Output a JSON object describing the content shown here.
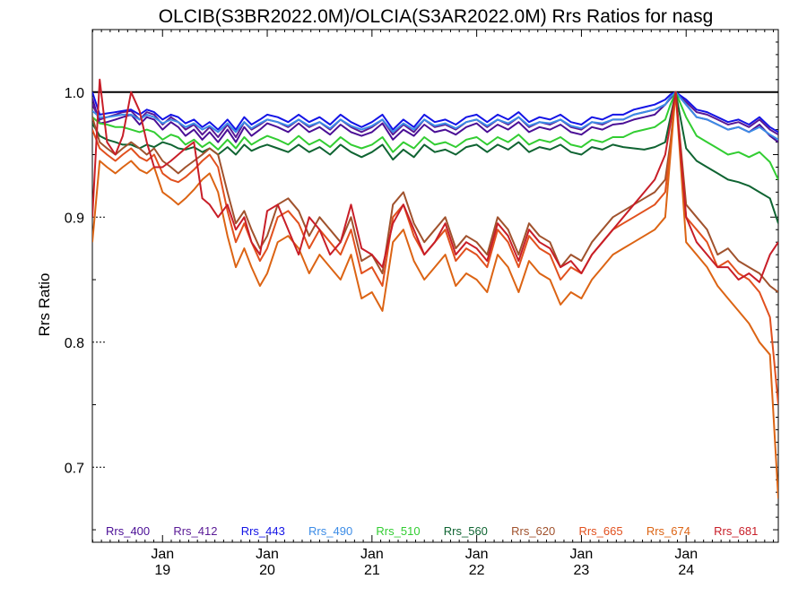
{
  "chart_data": {
    "type": "line",
    "title": "OLCIB(S3BR2022.0M)/OLCIA(S3AR2022.0M)  Rrs Ratios for nasg",
    "ylabel": "Rrs Ratio",
    "xlabel": "",
    "ylim": [
      0.64,
      1.05
    ],
    "y_ticks": [
      {
        "value": 0.7,
        "label": "0.7"
      },
      {
        "value": 0.8,
        "label": "0.8"
      },
      {
        "value": 0.9,
        "label": "0.9"
      },
      {
        "value": 1.0,
        "label": "1.0"
      }
    ],
    "x_range": [
      2018.33,
      2024.88
    ],
    "x_ticks": [
      {
        "value": 2019.0,
        "month": "Jan",
        "year": "19"
      },
      {
        "value": 2020.0,
        "month": "Jan",
        "year": "20"
      },
      {
        "value": 2021.0,
        "month": "Jan",
        "year": "21"
      },
      {
        "value": 2022.0,
        "month": "Jan",
        "year": "22"
      },
      {
        "value": 2023.0,
        "month": "Jan",
        "year": "23"
      },
      {
        "value": 2024.0,
        "month": "Jan",
        "year": "24"
      }
    ],
    "reference_line": 1.0,
    "grid": false,
    "legend_position": "bottom",
    "x": [
      2018.33,
      2018.4,
      2018.47,
      2018.55,
      2018.62,
      2018.7,
      2018.78,
      2018.85,
      2018.92,
      2019.0,
      2019.08,
      2019.15,
      2019.22,
      2019.3,
      2019.38,
      2019.45,
      2019.53,
      2019.62,
      2019.7,
      2019.78,
      2019.85,
      2019.93,
      2020.0,
      2020.1,
      2020.2,
      2020.3,
      2020.4,
      2020.5,
      2020.6,
      2020.7,
      2020.8,
      2020.9,
      2021.0,
      2021.1,
      2021.2,
      2021.3,
      2021.4,
      2021.5,
      2021.6,
      2021.7,
      2021.8,
      2021.9,
      2022.0,
      2022.1,
      2022.2,
      2022.3,
      2022.4,
      2022.5,
      2022.6,
      2022.7,
      2022.8,
      2022.9,
      2023.0,
      2023.1,
      2023.2,
      2023.3,
      2023.4,
      2023.5,
      2023.6,
      2023.7,
      2023.8,
      2023.85,
      2023.9,
      2024.0,
      2024.1,
      2024.2,
      2024.3,
      2024.4,
      2024.5,
      2024.6,
      2024.7,
      2024.8,
      2024.88
    ],
    "series": [
      {
        "name": "Rrs_400",
        "color": "#4b0f96",
        "values": [
          0.995,
          0.975,
          0.976,
          0.978,
          0.98,
          0.982,
          0.974,
          0.98,
          0.978,
          0.97,
          0.976,
          0.972,
          0.965,
          0.97,
          0.962,
          0.968,
          0.96,
          0.97,
          0.96,
          0.972,
          0.965,
          0.97,
          0.975,
          0.972,
          0.968,
          0.975,
          0.968,
          0.972,
          0.966,
          0.974,
          0.968,
          0.965,
          0.968,
          0.975,
          0.962,
          0.97,
          0.965,
          0.974,
          0.968,
          0.97,
          0.966,
          0.972,
          0.975,
          0.968,
          0.974,
          0.97,
          0.976,
          0.968,
          0.972,
          0.97,
          0.974,
          0.968,
          0.966,
          0.972,
          0.97,
          0.974,
          0.975,
          0.978,
          0.98,
          0.982,
          0.99,
          0.995,
          1.0,
          0.99,
          0.98,
          0.978,
          0.974,
          0.97,
          0.972,
          0.968,
          0.974,
          0.965,
          0.96
        ]
      },
      {
        "name": "Rrs_412",
        "color": "#5a1a96",
        "values": [
          0.99,
          0.978,
          0.98,
          0.982,
          0.984,
          0.985,
          0.978,
          0.984,
          0.982,
          0.974,
          0.98,
          0.976,
          0.97,
          0.974,
          0.966,
          0.972,
          0.964,
          0.974,
          0.964,
          0.976,
          0.97,
          0.974,
          0.978,
          0.976,
          0.972,
          0.978,
          0.972,
          0.976,
          0.97,
          0.978,
          0.972,
          0.968,
          0.972,
          0.978,
          0.966,
          0.974,
          0.968,
          0.978,
          0.972,
          0.974,
          0.97,
          0.976,
          0.978,
          0.972,
          0.978,
          0.974,
          0.98,
          0.972,
          0.976,
          0.974,
          0.978,
          0.972,
          0.97,
          0.976,
          0.974,
          0.978,
          0.978,
          0.982,
          0.984,
          0.986,
          0.99,
          0.996,
          1.0,
          0.992,
          0.984,
          0.982,
          0.978,
          0.974,
          0.976,
          0.972,
          0.978,
          0.97,
          0.966
        ]
      },
      {
        "name": "Rrs_443",
        "color": "#1414e6",
        "values": [
          1.0,
          0.982,
          0.983,
          0.984,
          0.985,
          0.986,
          0.982,
          0.986,
          0.984,
          0.978,
          0.982,
          0.98,
          0.975,
          0.978,
          0.972,
          0.976,
          0.97,
          0.978,
          0.97,
          0.98,
          0.974,
          0.978,
          0.982,
          0.98,
          0.976,
          0.982,
          0.976,
          0.98,
          0.974,
          0.982,
          0.976,
          0.972,
          0.976,
          0.982,
          0.97,
          0.978,
          0.972,
          0.982,
          0.976,
          0.978,
          0.974,
          0.98,
          0.982,
          0.976,
          0.982,
          0.978,
          0.984,
          0.976,
          0.98,
          0.978,
          0.982,
          0.976,
          0.974,
          0.98,
          0.978,
          0.982,
          0.982,
          0.986,
          0.988,
          0.99,
          0.994,
          0.998,
          1.0,
          0.994,
          0.986,
          0.984,
          0.98,
          0.976,
          0.978,
          0.974,
          0.98,
          0.972,
          0.968
        ]
      },
      {
        "name": "Rrs_490",
        "color": "#3c8ce6",
        "values": [
          0.985,
          0.98,
          0.98,
          0.981,
          0.982,
          0.982,
          0.978,
          0.982,
          0.98,
          0.975,
          0.978,
          0.976,
          0.972,
          0.975,
          0.97,
          0.973,
          0.968,
          0.975,
          0.968,
          0.976,
          0.971,
          0.975,
          0.978,
          0.976,
          0.973,
          0.978,
          0.973,
          0.976,
          0.971,
          0.978,
          0.973,
          0.97,
          0.973,
          0.978,
          0.968,
          0.975,
          0.97,
          0.978,
          0.973,
          0.975,
          0.971,
          0.976,
          0.978,
          0.973,
          0.978,
          0.975,
          0.98,
          0.973,
          0.976,
          0.975,
          0.978,
          0.973,
          0.971,
          0.976,
          0.975,
          0.978,
          0.978,
          0.982,
          0.984,
          0.986,
          0.99,
          0.996,
          1.0,
          0.99,
          0.98,
          0.978,
          0.974,
          0.97,
          0.972,
          0.968,
          0.972,
          0.966,
          0.962
        ]
      },
      {
        "name": "Rrs_510",
        "color": "#32cd32",
        "values": [
          0.98,
          0.975,
          0.974,
          0.972,
          0.972,
          0.97,
          0.968,
          0.97,
          0.968,
          0.962,
          0.966,
          0.964,
          0.958,
          0.962,
          0.956,
          0.96,
          0.954,
          0.962,
          0.955,
          0.964,
          0.958,
          0.962,
          0.965,
          0.962,
          0.958,
          0.965,
          0.958,
          0.962,
          0.956,
          0.964,
          0.958,
          0.955,
          0.958,
          0.964,
          0.952,
          0.96,
          0.955,
          0.964,
          0.958,
          0.96,
          0.956,
          0.962,
          0.964,
          0.958,
          0.964,
          0.96,
          0.966,
          0.958,
          0.962,
          0.96,
          0.964,
          0.958,
          0.956,
          0.962,
          0.96,
          0.964,
          0.964,
          0.968,
          0.97,
          0.972,
          0.978,
          0.99,
          1.0,
          0.98,
          0.965,
          0.96,
          0.955,
          0.95,
          0.952,
          0.948,
          0.952,
          0.944,
          0.93
        ]
      },
      {
        "name": "Rrs_560",
        "color": "#0f6432",
        "values": [
          0.975,
          0.965,
          0.962,
          0.96,
          0.958,
          0.958,
          0.955,
          0.958,
          0.956,
          0.96,
          0.958,
          0.955,
          0.954,
          0.956,
          0.952,
          0.955,
          0.95,
          0.956,
          0.95,
          0.958,
          0.953,
          0.956,
          0.958,
          0.955,
          0.952,
          0.958,
          0.952,
          0.956,
          0.95,
          0.958,
          0.952,
          0.948,
          0.952,
          0.958,
          0.946,
          0.954,
          0.948,
          0.958,
          0.952,
          0.954,
          0.95,
          0.956,
          0.958,
          0.952,
          0.958,
          0.954,
          0.96,
          0.952,
          0.956,
          0.954,
          0.958,
          0.952,
          0.95,
          0.956,
          0.954,
          0.958,
          0.956,
          0.955,
          0.954,
          0.956,
          0.96,
          0.98,
          1.0,
          0.955,
          0.945,
          0.94,
          0.935,
          0.93,
          0.928,
          0.925,
          0.92,
          0.915,
          0.895
        ]
      },
      {
        "name": "Rrs_620",
        "color": "#a0522d",
        "values": [
          0.98,
          0.96,
          0.955,
          0.95,
          0.955,
          0.96,
          0.955,
          0.95,
          0.955,
          0.945,
          0.94,
          0.935,
          0.94,
          0.945,
          0.95,
          0.955,
          0.95,
          0.92,
          0.895,
          0.905,
          0.89,
          0.875,
          0.885,
          0.91,
          0.915,
          0.905,
          0.885,
          0.9,
          0.89,
          0.88,
          0.9,
          0.865,
          0.87,
          0.855,
          0.91,
          0.92,
          0.895,
          0.88,
          0.89,
          0.9,
          0.875,
          0.885,
          0.88,
          0.87,
          0.9,
          0.89,
          0.87,
          0.895,
          0.885,
          0.88,
          0.86,
          0.87,
          0.865,
          0.88,
          0.89,
          0.9,
          0.905,
          0.91,
          0.915,
          0.92,
          0.93,
          0.96,
          1.0,
          0.91,
          0.9,
          0.89,
          0.87,
          0.875,
          0.865,
          0.86,
          0.855,
          0.845,
          0.84
        ]
      },
      {
        "name": "Rrs_665",
        "color": "#e1501e",
        "values": [
          0.97,
          0.955,
          0.95,
          0.945,
          0.95,
          0.955,
          0.948,
          0.945,
          0.95,
          0.935,
          0.93,
          0.928,
          0.932,
          0.938,
          0.945,
          0.95,
          0.94,
          0.905,
          0.88,
          0.895,
          0.88,
          0.865,
          0.875,
          0.9,
          0.905,
          0.895,
          0.875,
          0.89,
          0.88,
          0.87,
          0.89,
          0.855,
          0.86,
          0.845,
          0.9,
          0.91,
          0.885,
          0.87,
          0.88,
          0.89,
          0.865,
          0.875,
          0.87,
          0.86,
          0.89,
          0.88,
          0.86,
          0.885,
          0.875,
          0.87,
          0.85,
          0.86,
          0.855,
          0.87,
          0.88,
          0.89,
          0.895,
          0.9,
          0.905,
          0.91,
          0.92,
          0.955,
          1.0,
          0.9,
          0.89,
          0.88,
          0.86,
          0.865,
          0.855,
          0.85,
          0.84,
          0.82,
          0.75
        ]
      },
      {
        "name": "Rrs_674",
        "color": "#dc6414",
        "values": [
          0.88,
          0.945,
          0.94,
          0.935,
          0.94,
          0.945,
          0.938,
          0.935,
          0.94,
          0.92,
          0.915,
          0.91,
          0.915,
          0.922,
          0.93,
          0.935,
          0.92,
          0.885,
          0.86,
          0.875,
          0.86,
          0.845,
          0.855,
          0.88,
          0.885,
          0.875,
          0.855,
          0.87,
          0.86,
          0.85,
          0.87,
          0.835,
          0.84,
          0.825,
          0.88,
          0.89,
          0.865,
          0.85,
          0.86,
          0.87,
          0.845,
          0.855,
          0.85,
          0.84,
          0.87,
          0.86,
          0.84,
          0.865,
          0.855,
          0.85,
          0.83,
          0.84,
          0.835,
          0.85,
          0.86,
          0.87,
          0.875,
          0.88,
          0.885,
          0.89,
          0.9,
          0.95,
          1.0,
          0.88,
          0.87,
          0.86,
          0.845,
          0.835,
          0.825,
          0.815,
          0.8,
          0.79,
          0.675
        ]
      },
      {
        "name": "Rrs_681",
        "color": "#c81e28",
        "values": [
          0.9,
          1.01,
          0.96,
          0.95,
          0.965,
          1.0,
          0.985,
          0.96,
          0.94,
          0.94,
          0.945,
          0.95,
          0.955,
          0.96,
          0.915,
          0.91,
          0.9,
          0.91,
          0.89,
          0.9,
          0.88,
          0.87,
          0.905,
          0.91,
          0.89,
          0.87,
          0.9,
          0.89,
          0.87,
          0.88,
          0.91,
          0.875,
          0.87,
          0.86,
          0.895,
          0.91,
          0.89,
          0.87,
          0.88,
          0.895,
          0.87,
          0.88,
          0.875,
          0.865,
          0.895,
          0.885,
          0.865,
          0.89,
          0.88,
          0.875,
          0.86,
          0.865,
          0.855,
          0.87,
          0.88,
          0.89,
          0.9,
          0.91,
          0.92,
          0.93,
          0.95,
          0.975,
          1.0,
          0.9,
          0.88,
          0.87,
          0.86,
          0.86,
          0.85,
          0.855,
          0.848,
          0.87,
          0.88
        ]
      }
    ]
  }
}
